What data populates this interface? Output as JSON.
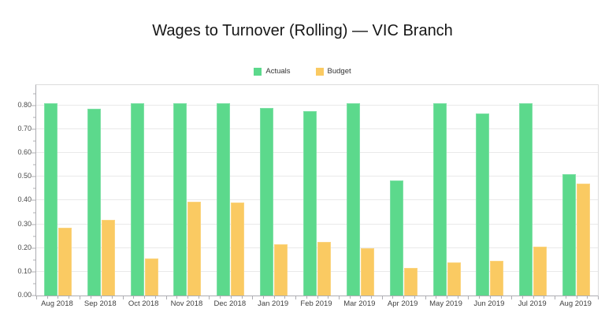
{
  "chart_data": {
    "type": "bar",
    "title": "Wages to Turnover (Rolling) — VIC Branch",
    "categories": [
      "Aug 2018",
      "Sep 2018",
      "Oct 2018",
      "Nov 2018",
      "Dec 2018",
      "Jan 2019",
      "Feb 2019",
      "Mar 2019",
      "Apr 2019",
      "May 2019",
      "Jun 2019",
      "Jul 2019",
      "Aug 2019"
    ],
    "series": [
      {
        "name": "Actuals",
        "color": "#5cd98c",
        "border_color": "#7fe0a6",
        "values": [
          0.81,
          0.785,
          0.81,
          0.81,
          0.81,
          0.79,
          0.775,
          0.81,
          0.485,
          0.81,
          0.765,
          0.81,
          0.51
        ]
      },
      {
        "name": "Budget",
        "color": "#faca62",
        "border_color": "#fbd47e",
        "values": [
          0.285,
          0.32,
          0.155,
          0.395,
          0.39,
          0.215,
          0.225,
          0.2,
          0.115,
          0.14,
          0.145,
          0.205,
          0.47
        ]
      }
    ],
    "xlabel": "",
    "ylabel": "",
    "ylim": [
      0,
      0.886
    ],
    "y_ticks": [
      "0.00",
      "0.10",
      "0.20",
      "0.30",
      "0.40",
      "0.50",
      "0.60",
      "0.70",
      "0.80"
    ],
    "y_minor_tick_step": 0.05,
    "grid": "horizontal",
    "legend_position": "top-center"
  }
}
